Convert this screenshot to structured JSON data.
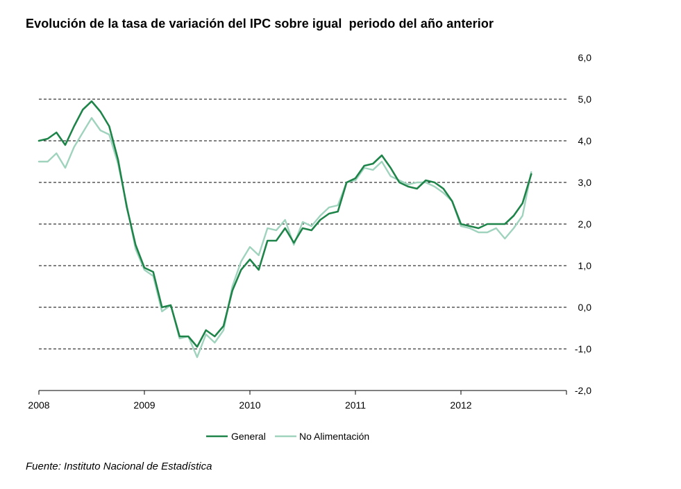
{
  "title": "Evolución de la tasa de variación del IPC sobre igual  periodo del año anterior",
  "source": "Fuente: Instituto Nacional de Estadística",
  "chart_data": {
    "type": "line",
    "title": "Evolución de la tasa de variación del IPC sobre igual  periodo del año anterior",
    "xlabel": "",
    "ylabel": "",
    "ylim": [
      -2,
      6
    ],
    "y_ticks": [
      "6,0",
      "5,0",
      "4,0",
      "3,0",
      "2,0",
      "1,0",
      "0,0",
      "-1,0",
      "-2,0"
    ],
    "y_tick_values": [
      6,
      5,
      4,
      3,
      2,
      1,
      0,
      -1,
      -2
    ],
    "x_ticks": [
      "2008",
      "2009",
      "2010",
      "2011",
      "2012"
    ],
    "x": [
      "2008-01",
      "2008-02",
      "2008-03",
      "2008-04",
      "2008-05",
      "2008-06",
      "2008-07",
      "2008-08",
      "2008-09",
      "2008-10",
      "2008-11",
      "2008-12",
      "2009-01",
      "2009-02",
      "2009-03",
      "2009-04",
      "2009-05",
      "2009-06",
      "2009-07",
      "2009-08",
      "2009-09",
      "2009-10",
      "2009-11",
      "2009-12",
      "2010-01",
      "2010-02",
      "2010-03",
      "2010-04",
      "2010-05",
      "2010-06",
      "2010-07",
      "2010-08",
      "2010-09",
      "2010-10",
      "2010-11",
      "2010-12",
      "2011-01",
      "2011-02",
      "2011-03",
      "2011-04",
      "2011-05",
      "2011-06",
      "2011-07",
      "2011-08",
      "2011-09",
      "2011-10",
      "2011-11",
      "2011-12",
      "2012-01",
      "2012-02",
      "2012-03",
      "2012-04",
      "2012-05",
      "2012-06",
      "2012-07",
      "2012-08",
      "2012-09"
    ],
    "grid": "horizontal dashed",
    "legend_position": "bottom",
    "series": [
      {
        "name": "General",
        "color": "#1e8449",
        "values": [
          4.0,
          4.05,
          4.2,
          3.9,
          4.35,
          4.75,
          4.95,
          4.7,
          4.35,
          3.55,
          2.4,
          1.5,
          0.95,
          0.85,
          0.0,
          0.05,
          -0.7,
          -0.7,
          -0.95,
          -0.55,
          -0.7,
          -0.45,
          0.4,
          0.9,
          1.15,
          0.9,
          1.6,
          1.6,
          1.9,
          1.55,
          1.9,
          1.85,
          2.1,
          2.25,
          2.3,
          3.0,
          3.1,
          3.4,
          3.45,
          3.65,
          3.35,
          3.0,
          2.9,
          2.85,
          3.05,
          3.0,
          2.85,
          2.55,
          2.0,
          1.95,
          1.9,
          2.0,
          2.0,
          2.0,
          2.2,
          2.5,
          3.2
        ]
      },
      {
        "name": "No Alimentación",
        "color": "#9fd3bd",
        "values": [
          3.5,
          3.5,
          3.7,
          3.35,
          3.85,
          4.2,
          4.55,
          4.25,
          4.15,
          3.45,
          2.45,
          1.4,
          0.9,
          0.75,
          -0.1,
          0.05,
          -0.75,
          -0.7,
          -1.2,
          -0.65,
          -0.85,
          -0.55,
          0.5,
          1.1,
          1.45,
          1.25,
          1.9,
          1.85,
          2.1,
          1.5,
          2.05,
          1.95,
          2.2,
          2.4,
          2.45,
          3.0,
          3.05,
          3.35,
          3.3,
          3.5,
          3.15,
          3.05,
          2.95,
          3.0,
          3.0,
          2.9,
          2.75,
          2.55,
          1.95,
          1.9,
          1.8,
          1.8,
          1.9,
          1.65,
          1.9,
          2.2,
          3.25
        ]
      }
    ]
  }
}
